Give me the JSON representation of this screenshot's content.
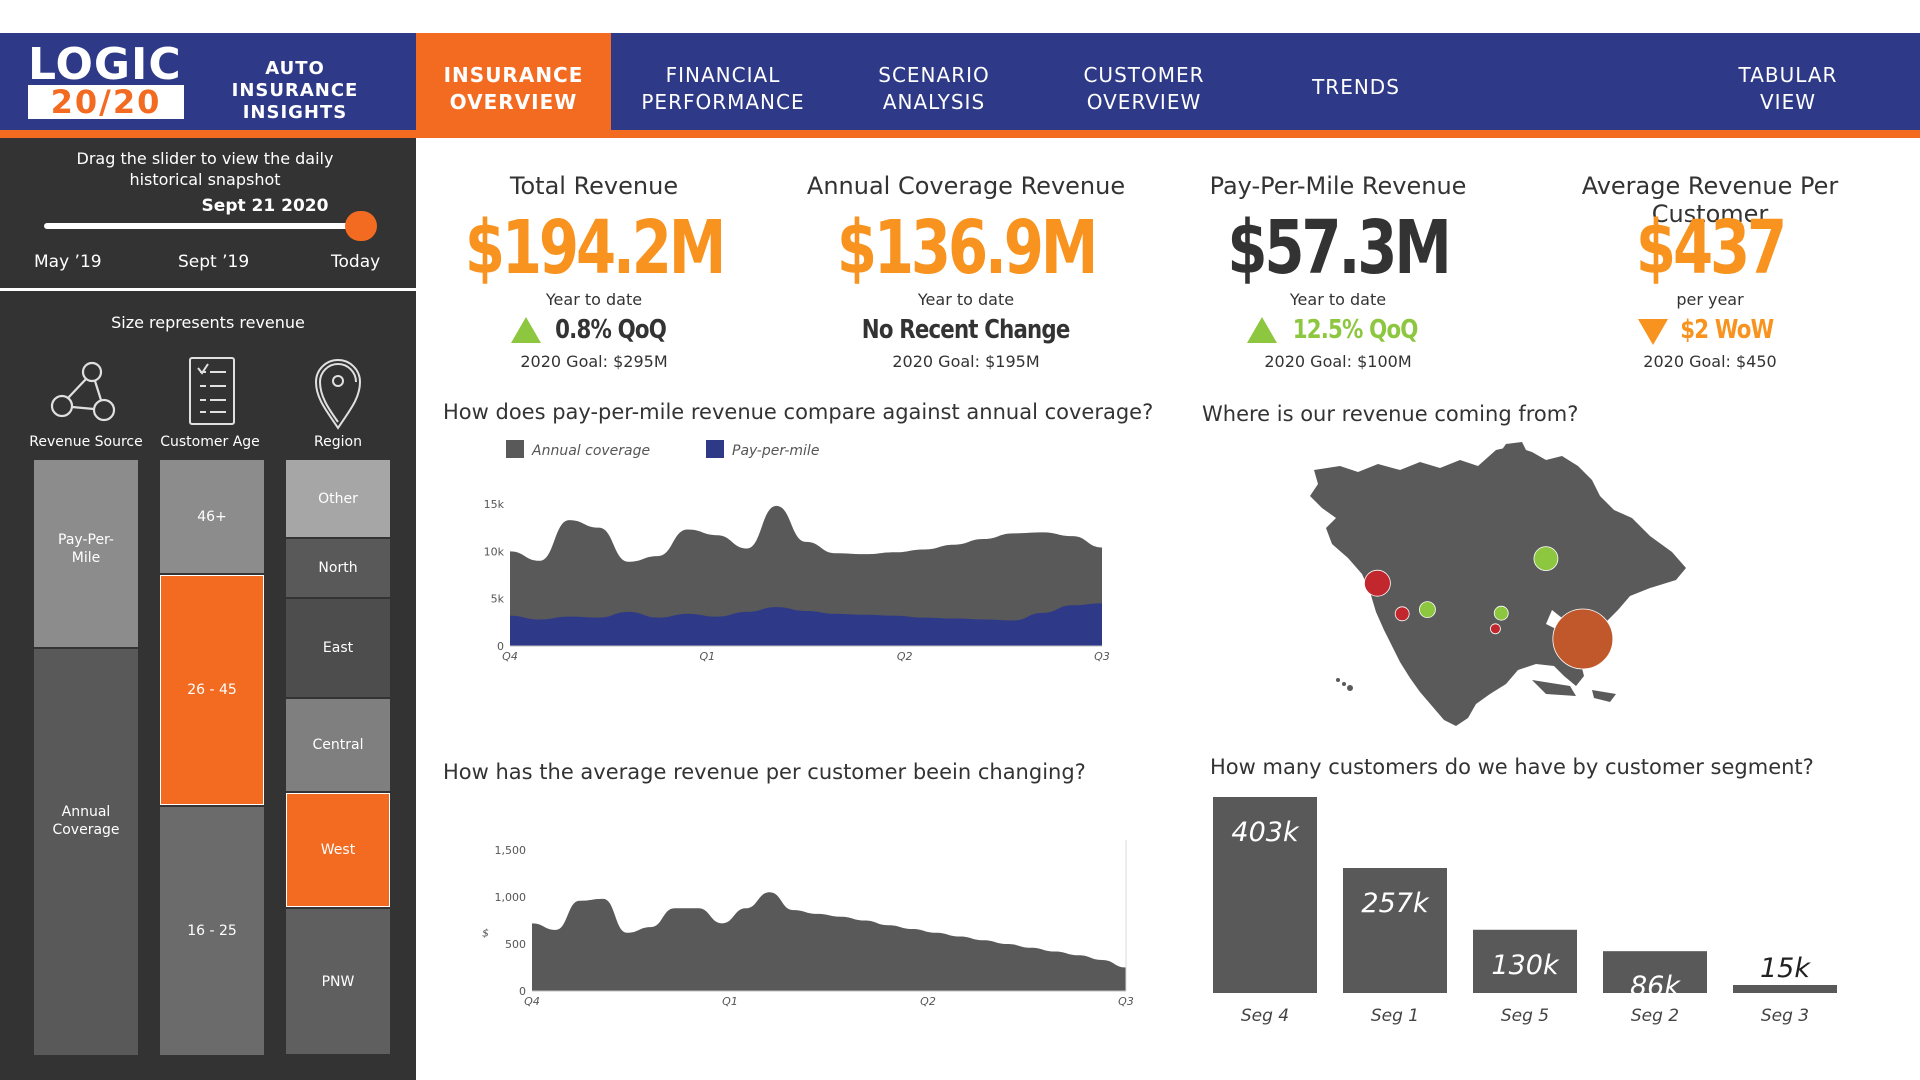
{
  "app": {
    "logo_top": "LOGIC",
    "logo_bottom": "20/20",
    "title_line1": "AUTO INSURANCE",
    "title_line2": "INSIGHTS"
  },
  "nav": {
    "tabs": [
      {
        "line1": "INSURANCE",
        "line2": "OVERVIEW",
        "active": true
      },
      {
        "line1": "FINANCIAL",
        "line2": "PERFORMANCE",
        "active": false
      },
      {
        "line1": "SCENARIO",
        "line2": "ANALYSIS",
        "active": false
      },
      {
        "line1": "CUSTOMER",
        "line2": "OVERVIEW",
        "active": false
      },
      {
        "line1": "TRENDS",
        "line2": "",
        "active": false
      },
      {
        "line1": "TABULAR",
        "line2": "VIEW",
        "active": false
      }
    ]
  },
  "sidebar": {
    "slider_instruction_1": "Drag the slider to view the daily",
    "slider_instruction_2": "historical snapshot",
    "slider_date": "Sept 21 2020",
    "slider_position": 0.99,
    "slider_ticks": [
      "May ’19",
      "Sept ’19",
      "Today"
    ],
    "size_note": "Size represents revenue",
    "dimensions": [
      {
        "label": "Revenue Source",
        "icon": "network-nodes-icon"
      },
      {
        "label": "Customer Age",
        "icon": "checklist-icon"
      },
      {
        "label": "Region",
        "icon": "map-pin-icon"
      }
    ],
    "revenue_source": [
      {
        "label": "Pay-Per-Mile",
        "share": 0.316,
        "highlight": false
      },
      {
        "label": "Annual Coverage",
        "share": 0.684,
        "highlight": false
      }
    ],
    "customer_age": [
      {
        "label": "46+",
        "share": 0.193,
        "highlight": false
      },
      {
        "label": "26 - 45",
        "share": 0.388,
        "highlight": true
      },
      {
        "label": "16 - 25",
        "share": 0.419,
        "highlight": false
      }
    ],
    "region": [
      {
        "label": "Other",
        "share": 0.132,
        "highlight": false
      },
      {
        "label": "North",
        "share": 0.1,
        "highlight": false
      },
      {
        "label": "East",
        "share": 0.168,
        "highlight": false
      },
      {
        "label": "Central",
        "share": 0.158,
        "highlight": false
      },
      {
        "label": "West",
        "share": 0.195,
        "highlight": true
      },
      {
        "label": "PNW",
        "share": 0.247,
        "highlight": false
      }
    ]
  },
  "kpis": [
    {
      "title": "Total Revenue",
      "value": "$194.2M",
      "sub": "Year to date",
      "change": "0.8% QoQ",
      "direction": "up",
      "goal": "2020 Goal: $295M",
      "value_color": "#f7931e",
      "change_color": "#333333"
    },
    {
      "title": "Annual Coverage Revenue",
      "value": "$136.9M",
      "sub": "Year to date",
      "change": "No Recent Change",
      "direction": "none",
      "goal": "2020 Goal: $195M",
      "value_color": "#f7931e",
      "change_color": "#333333"
    },
    {
      "title": "Pay-Per-Mile Revenue",
      "value": "$57.3M",
      "sub": "Year to date",
      "change": "12.5% QoQ",
      "direction": "up",
      "goal": "2020 Goal: $100M",
      "value_color": "#333333",
      "change_color": "#8dc63f"
    },
    {
      "title": "Average Revenue Per Customer",
      "value": "$437",
      "sub": "per year",
      "change": "$2 WoW",
      "direction": "down",
      "goal": "2020 Goal: $450",
      "value_color": "#f7931e",
      "change_color": "#f7931e"
    }
  ],
  "charts": {
    "compare_title": "How does pay-per-mile revenue compare against annual coverage?",
    "avg_title": "How has the average revenue per customer beein changing?",
    "map_title": "Where is our revenue coming from?",
    "segment_title": "How many customers do we have by customer segment?"
  },
  "chart_data": [
    {
      "type": "area",
      "title": "How does pay-per-mile revenue compare against annual coverage?",
      "x_ticks": [
        "Q4",
        "Q1",
        "Q2",
        "Q3"
      ],
      "y_ticks": [
        "0",
        "5k",
        "10k",
        "15k"
      ],
      "ylim": [
        0,
        15000
      ],
      "legend_position": "top-left",
      "series": [
        {
          "name": "Annual coverage",
          "color": "#595959",
          "x": [
            0,
            0.05,
            0.1,
            0.15,
            0.2,
            0.25,
            0.3,
            0.35,
            0.4,
            0.45,
            0.5,
            0.55,
            0.6,
            0.65,
            0.7,
            0.75,
            0.8,
            0.85,
            0.9,
            0.95,
            1.0
          ],
          "values": [
            10000,
            9000,
            13300,
            12500,
            8900,
            9500,
            12300,
            11700,
            10300,
            14800,
            11000,
            9800,
            9700,
            9900,
            10200,
            10700,
            11300,
            11900,
            12000,
            11600,
            10400
          ]
        },
        {
          "name": "Pay-per-mile",
          "color": "#2e3a87",
          "x": [
            0,
            0.05,
            0.1,
            0.15,
            0.2,
            0.25,
            0.3,
            0.35,
            0.4,
            0.45,
            0.5,
            0.55,
            0.6,
            0.65,
            0.7,
            0.75,
            0.8,
            0.85,
            0.9,
            0.95,
            1.0
          ],
          "values": [
            3200,
            2800,
            3100,
            3000,
            3600,
            3000,
            3400,
            3100,
            3600,
            4100,
            3700,
            3400,
            3300,
            3200,
            3000,
            2900,
            2800,
            2700,
            3500,
            4300,
            4500
          ]
        }
      ]
    },
    {
      "type": "area",
      "title": "How has the average revenue per customer beein changing?",
      "x_ticks": [
        "Q4",
        "Q1",
        "Q2",
        "Q3"
      ],
      "y_ticks": [
        "0",
        "500",
        "1,000",
        "1,500"
      ],
      "ylabel": "$",
      "ylim": [
        0,
        1500
      ],
      "series": [
        {
          "name": "",
          "color": "#595959",
          "x": [
            0,
            0.04,
            0.08,
            0.12,
            0.16,
            0.2,
            0.24,
            0.28,
            0.32,
            0.36,
            0.4,
            0.44,
            0.48,
            0.52,
            0.56,
            0.6,
            0.64,
            0.68,
            0.72,
            0.76,
            0.8,
            0.84,
            0.88,
            0.92,
            0.96,
            1.0
          ],
          "values": [
            720,
            650,
            960,
            980,
            620,
            680,
            880,
            880,
            720,
            880,
            1050,
            860,
            820,
            790,
            750,
            700,
            660,
            620,
            580,
            540,
            500,
            460,
            420,
            380,
            330,
            250
          ]
        }
      ]
    },
    {
      "type": "bar",
      "title": "How many customers do we have by customer segment?",
      "categories": [
        "Seg 4",
        "Seg 1",
        "Seg 5",
        "Seg 2",
        "Seg 3"
      ],
      "values": [
        403,
        257,
        130,
        86,
        15
      ],
      "labels": [
        "403k",
        "257k",
        "130k",
        "86k",
        "15k"
      ],
      "ylim": [
        0,
        403
      ],
      "color": "#595959"
    },
    {
      "type": "scatter",
      "title": "Where is our revenue coming from?",
      "x": [
        -122.3,
        -117.2,
        -112.0,
        -98.0,
        -96.8,
        -87.6,
        -80.0
      ],
      "y": [
        37.8,
        32.7,
        33.4,
        30.2,
        32.8,
        41.9,
        28.5
      ],
      "sizes": [
        13,
        7,
        8,
        5,
        7,
        12,
        30
      ],
      "colors": [
        "#c1272d",
        "#c1272d",
        "#8dc63f",
        "#c1272d",
        "#8dc63f",
        "#8dc63f",
        "#c0582b"
      ]
    }
  ]
}
